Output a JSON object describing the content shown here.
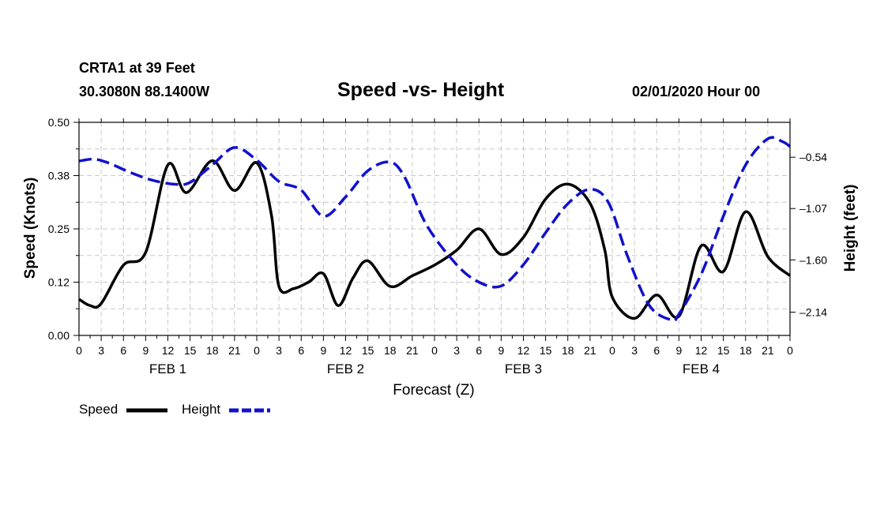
{
  "header": {
    "station": "CRTA1 at 39 Feet",
    "location": "30.3080N 88.1400W",
    "title": "Speed -vs- Height",
    "timestamp": "02/01/2020 Hour 00"
  },
  "chart_data": {
    "type": "line",
    "title": "Speed -vs- Height",
    "xlabel": "Forecast (Z)",
    "ylabel": "Speed (Knots)",
    "y2label": "Height (feet)",
    "ylim": [
      0.0,
      0.5
    ],
    "y2lim": [
      -2.38,
      -0.18
    ],
    "xlim": [
      0,
      96
    ],
    "grid": true,
    "legend_position": "bottom-left",
    "x_ticks": [
      {
        "x": 0,
        "label": "0"
      },
      {
        "x": 3,
        "label": "3"
      },
      {
        "x": 6,
        "label": "6"
      },
      {
        "x": 9,
        "label": "9"
      },
      {
        "x": 12,
        "label": "12"
      },
      {
        "x": 15,
        "label": "15"
      },
      {
        "x": 18,
        "label": "18"
      },
      {
        "x": 21,
        "label": "21"
      },
      {
        "x": 24,
        "label": "0"
      },
      {
        "x": 27,
        "label": "3"
      },
      {
        "x": 30,
        "label": "6"
      },
      {
        "x": 33,
        "label": "9"
      },
      {
        "x": 36,
        "label": "12"
      },
      {
        "x": 39,
        "label": "15"
      },
      {
        "x": 42,
        "label": "18"
      },
      {
        "x": 45,
        "label": "21"
      },
      {
        "x": 48,
        "label": "0"
      },
      {
        "x": 51,
        "label": "3"
      },
      {
        "x": 54,
        "label": "6"
      },
      {
        "x": 57,
        "label": "9"
      },
      {
        "x": 60,
        "label": "12"
      },
      {
        "x": 63,
        "label": "15"
      },
      {
        "x": 66,
        "label": "18"
      },
      {
        "x": 69,
        "label": "21"
      },
      {
        "x": 72,
        "label": "0"
      },
      {
        "x": 75,
        "label": "3"
      },
      {
        "x": 78,
        "label": "6"
      },
      {
        "x": 81,
        "label": "9"
      },
      {
        "x": 84,
        "label": "12"
      },
      {
        "x": 87,
        "label": "15"
      },
      {
        "x": 90,
        "label": "18"
      },
      {
        "x": 93,
        "label": "21"
      },
      {
        "x": 96,
        "label": "0"
      }
    ],
    "day_labels": [
      {
        "x": 12,
        "label": "FEB 1"
      },
      {
        "x": 36,
        "label": "FEB 2"
      },
      {
        "x": 60,
        "label": "FEB 3"
      },
      {
        "x": 84,
        "label": "FEB 4"
      }
    ],
    "y_ticks": [
      {
        "value": 0.0,
        "label": "0.00"
      },
      {
        "value": 0.125,
        "label": "0.12"
      },
      {
        "value": 0.25,
        "label": "0.25"
      },
      {
        "value": 0.375,
        "label": "0.38"
      },
      {
        "value": 0.5,
        "label": "0.50"
      }
    ],
    "y2_ticks": [
      {
        "value": -0.54,
        "label": "-0.54"
      },
      {
        "value": -1.07,
        "label": "-1.07"
      },
      {
        "value": -1.6,
        "label": "-1.60"
      },
      {
        "value": -2.14,
        "label": "-2.14"
      }
    ],
    "series": [
      {
        "name": "Speed",
        "axis": "left",
        "color": "#000000",
        "dash": "solid",
        "x": [
          0,
          1.5,
          3,
          6,
          9,
          12,
          14.5,
          18,
          21,
          24,
          26,
          27,
          29,
          31,
          33,
          35,
          37,
          39,
          42,
          45,
          48,
          51,
          54,
          57,
          60,
          63,
          66,
          69,
          71,
          72,
          75,
          78,
          81,
          84,
          87,
          90,
          93,
          96
        ],
        "values": [
          0.085,
          0.07,
          0.075,
          0.165,
          0.195,
          0.4,
          0.335,
          0.41,
          0.34,
          0.405,
          0.28,
          0.115,
          0.11,
          0.125,
          0.145,
          0.07,
          0.135,
          0.175,
          0.115,
          0.14,
          0.165,
          0.2,
          0.25,
          0.19,
          0.23,
          0.32,
          0.355,
          0.31,
          0.2,
          0.09,
          0.04,
          0.095,
          0.045,
          0.21,
          0.15,
          0.29,
          0.185,
          0.14
        ]
      },
      {
        "name": "Height",
        "axis": "right",
        "color": "#1111cc",
        "dash": "dashed",
        "x": [
          0,
          2,
          4,
          7,
          10,
          13,
          15,
          18,
          21,
          24,
          27,
          30,
          33,
          36,
          39,
          42,
          44,
          47,
          51,
          54,
          57,
          60,
          63,
          66,
          69,
          71.5,
          74,
          77,
          80,
          81,
          84,
          87,
          90,
          93,
          95,
          96
        ],
        "values": [
          -0.58,
          -0.56,
          -0.6,
          -0.7,
          -0.78,
          -0.82,
          -0.8,
          -0.62,
          -0.44,
          -0.57,
          -0.79,
          -0.88,
          -1.15,
          -0.95,
          -0.68,
          -0.59,
          -0.75,
          -1.25,
          -1.65,
          -1.83,
          -1.87,
          -1.65,
          -1.32,
          -1.02,
          -0.87,
          -1.01,
          -1.55,
          -2.07,
          -2.22,
          -2.16,
          -1.75,
          -1.15,
          -0.62,
          -0.35,
          -0.38,
          -0.43
        ]
      }
    ]
  },
  "legend": [
    {
      "label": "Speed",
      "color": "#000000",
      "dash": "solid"
    },
    {
      "label": "Height",
      "color": "#1111cc",
      "dash": "dashed"
    }
  ]
}
